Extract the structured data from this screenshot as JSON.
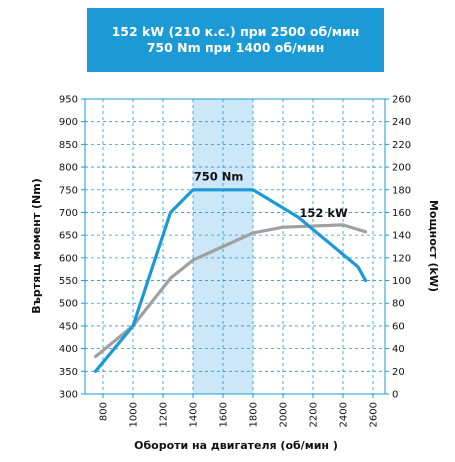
{
  "header": {
    "line1": "152 kW (210 к.с.) при 2500 об/мин",
    "line2": "750 Nm при 1400 об/мин"
  },
  "chart_data": {
    "type": "line",
    "xlabel": "Обороти на двигателя (об/мин )",
    "ylabel_left": "Въртящ момент (Nm)",
    "ylabel_right": "Мощност (kW)",
    "x_ticks": [
      "800",
      "1000",
      "1200",
      "1400",
      "1600",
      "1800",
      "2000",
      "2200",
      "2400",
      "2600"
    ],
    "xlim": [
      680,
      2680
    ],
    "y_left_ticks": [
      "300",
      "350",
      "400",
      "450",
      "500",
      "550",
      "600",
      "650",
      "700",
      "750",
      "800",
      "850",
      "900",
      "950"
    ],
    "ylim_left": [
      300,
      950
    ],
    "y_right_ticks": [
      "0",
      "20",
      "40",
      "60",
      "80",
      "100",
      "120",
      "140",
      "160",
      "180",
      "200",
      "220",
      "240",
      "260"
    ],
    "ylim_right": [
      0,
      260
    ],
    "grid": true,
    "highlight_band": {
      "x": [
        1400,
        1800
      ],
      "color": "#cce7f7"
    },
    "series": [
      {
        "name": "Torque",
        "axis": "left",
        "color": "#1b9ad6",
        "x": [
          750,
          1000,
          1250,
          1400,
          1800,
          2100,
          2500,
          2550
        ],
        "y": [
          350,
          450,
          700,
          750,
          750,
          690,
          580,
          550
        ]
      },
      {
        "name": "Power",
        "axis": "right",
        "color": "#a0a0a0",
        "x": [
          750,
          1000,
          1250,
          1400,
          1800,
          2000,
          2400,
          2550
        ],
        "y": [
          33,
          60,
          102,
          118,
          142,
          147,
          149,
          143
        ]
      }
    ],
    "annotations": [
      {
        "text": "750 Nm",
        "x": 1570,
        "y_left": 770
      },
      {
        "text": "152 kW",
        "x": 2270,
        "y_right": 156
      }
    ]
  }
}
